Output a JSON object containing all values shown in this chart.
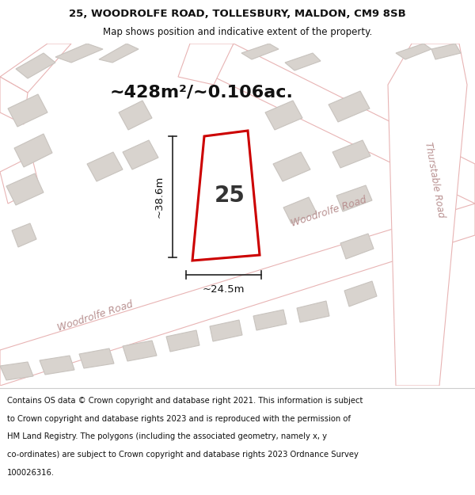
{
  "title_line1": "25, WOODROLFE ROAD, TOLLESBURY, MALDON, CM9 8SB",
  "title_line2": "Map shows position and indicative extent of the property.",
  "area_text": "~428m²/~0.106ac.",
  "label_25": "25",
  "dim_width": "~24.5m",
  "dim_height": "~38.6m",
  "road_label_lower": "Woodrolfe Road",
  "road_label_upper": "Woodrolfe Road",
  "road_label_right": "Thurstable Road",
  "footer_lines": [
    "Contains OS data © Crown copyright and database right 2021. This information is subject",
    "to Crown copyright and database rights 2023 and is reproduced with the permission of",
    "HM Land Registry. The polygons (including the associated geometry, namely x, y",
    "co-ordinates) are subject to Crown copyright and database rights 2023 Ordnance Survey",
    "100026316."
  ],
  "map_bg": "#f2eeeb",
  "road_fill": "#ffffff",
  "road_edge": "#e8b4b4",
  "building_fill": "#d8d3ce",
  "building_edge": "#c8c3be",
  "highlight_edge": "#cc0000",
  "highlight_fill": "#ffffff",
  "dim_line_color": "#222222",
  "text_color": "#111111",
  "road_text_color": "#b89090",
  "footer_bg": "#ffffff",
  "title_bg": "#ffffff",
  "title_fontsize": 9.5,
  "subtitle_fontsize": 8.5,
  "area_fontsize": 16,
  "label_fontsize": 20,
  "dim_fontsize": 9.5,
  "road_fontsize": 9,
  "footer_fontsize": 7.2
}
